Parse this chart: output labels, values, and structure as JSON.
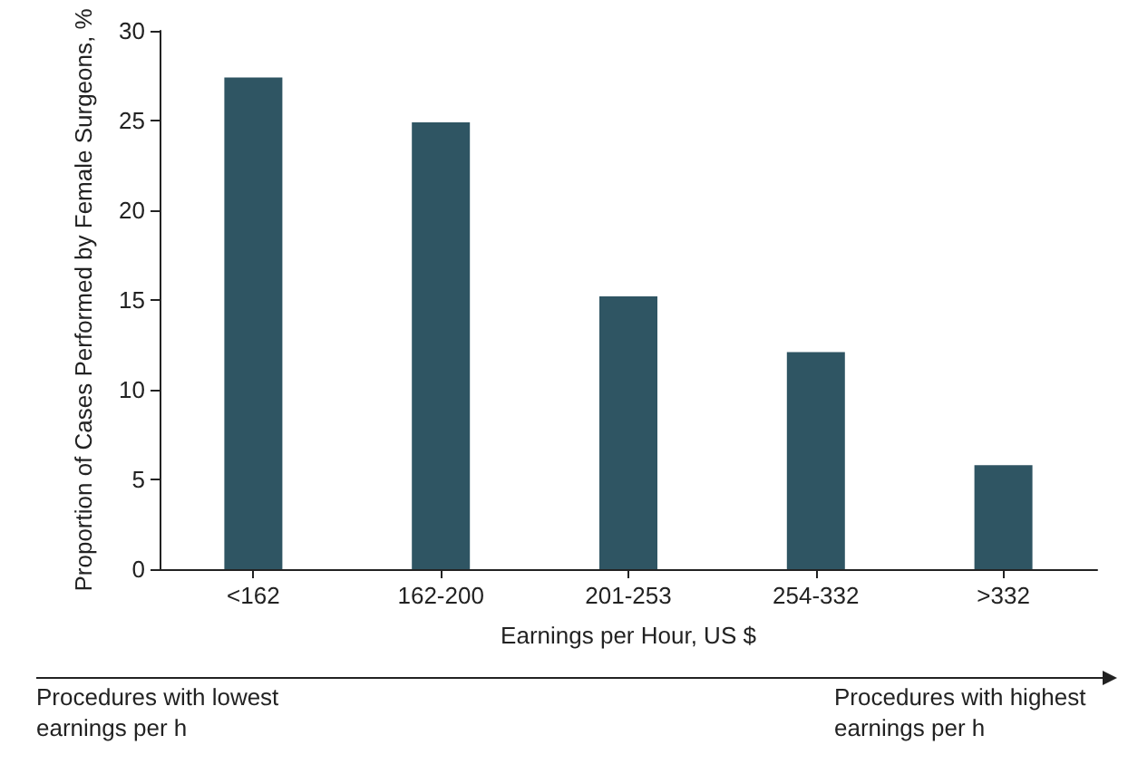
{
  "chart_data": {
    "type": "bar",
    "xlabel": "Earnings per Hour, US $",
    "ylabel": "Proportion of Cases Performed by Female Surgeons, %",
    "categories": [
      "<162",
      "162-200",
      "201-253",
      "254-332",
      ">332"
    ],
    "values": [
      27.4,
      24.9,
      15.2,
      12.1,
      5.8
    ],
    "color": "#2f5563",
    "ylim": [
      0,
      30
    ],
    "yticks": [
      0,
      5,
      10,
      15,
      20,
      25,
      30
    ],
    "grid": false,
    "annotations": [
      "Procedures with lowest earnings per h",
      "Procedures with highest earnings per h"
    ]
  }
}
